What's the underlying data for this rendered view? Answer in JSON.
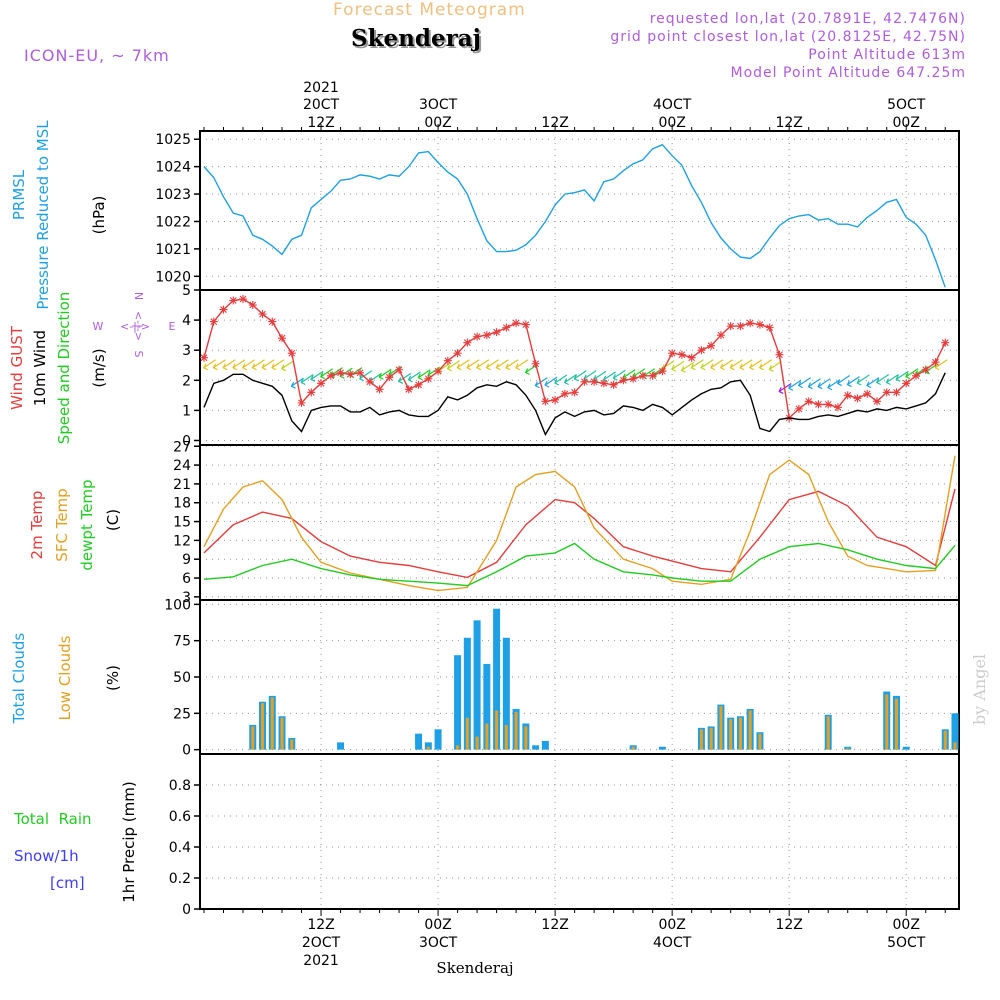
{
  "header": {
    "product": "Forecast Meteogram",
    "model": "ICON-EU, ~ 7km",
    "location": "Skenderaj",
    "requested": "requested lon,lat (20.7891E, 42.7476N)",
    "gridpoint": "grid point closest lon,lat (20.8125E, 42.75N)",
    "point_alt": "Point Altitude 613m",
    "model_alt": "Model Point Altitude 647.25m",
    "credit": "by Angel",
    "bottom_label": "Skenderaj"
  },
  "time_axis": {
    "top_year": "2021",
    "labels": [
      {
        "h": 12,
        "top": "20CT",
        "sub": "12Z"
      },
      {
        "h": 24,
        "top": "3OCT",
        "sub": "00Z"
      },
      {
        "h": 36,
        "top": "",
        "sub": "12Z"
      },
      {
        "h": 48,
        "top": "4OCT",
        "sub": "00Z"
      },
      {
        "h": 60,
        "top": "",
        "sub": "12Z"
      },
      {
        "h": 72,
        "top": "5OCT",
        "sub": "00Z"
      }
    ],
    "bottom_labels": [
      {
        "h": 12,
        "l1": "12Z",
        "l2": "2OCT",
        "l3": "2021"
      },
      {
        "h": 24,
        "l1": "00Z",
        "l2": "3OCT",
        "l3": ""
      },
      {
        "h": 36,
        "l1": "12Z",
        "l2": "",
        "l3": ""
      },
      {
        "h": 48,
        "l1": "00Z",
        "l2": "4OCT",
        "l3": ""
      },
      {
        "h": 60,
        "l1": "12Z",
        "l2": "",
        "l3": ""
      },
      {
        "h": 72,
        "l1": "00Z",
        "l2": "5OCT",
        "l3": ""
      }
    ]
  },
  "colors": {
    "pressure": "#1ea0e6",
    "gust": "#e63c3c",
    "wind": "#000000",
    "t2m": "#e63c3c",
    "sfc": "#e6a020",
    "dewpt": "#22cc22",
    "total_clouds": "#1ea0e6",
    "low_clouds": "#e6a020",
    "rain": "#22cc22",
    "snow": "#3c3cff",
    "header_purple": "#b05ce0",
    "header_orange": "#f0c080"
  },
  "chart_data": [
    {
      "type": "line",
      "panel": "pressure",
      "label_lines": [
        "PRMSL",
        "Pressure Reduced to MSL"
      ],
      "unit": "(hPa)",
      "ylim": [
        1019.5,
        1025.3
      ],
      "yticks": [
        1020,
        1021,
        1022,
        1023,
        1024,
        1025
      ],
      "series": [
        {
          "x": [
            0,
            1,
            2,
            3,
            4,
            5,
            6,
            7,
            8,
            9,
            10,
            11,
            12,
            13,
            14,
            15,
            16,
            17,
            18,
            19,
            20,
            21,
            22,
            23,
            24,
            25,
            26,
            27,
            28,
            29,
            30,
            31,
            32,
            33,
            34,
            35,
            36,
            37,
            38,
            39,
            40,
            41,
            42,
            43,
            44,
            45,
            46,
            47,
            48,
            49,
            50,
            51,
            52,
            53,
            54,
            55,
            56,
            57,
            58,
            59,
            60,
            61,
            62,
            63,
            64,
            65,
            66,
            67,
            68,
            69,
            70,
            71,
            72,
            73,
            74,
            75,
            76
          ],
          "y": [
            1024.0,
            1023.6,
            1022.9,
            1022.3,
            1022.2,
            1021.5,
            1021.35,
            1021.1,
            1020.8,
            1021.35,
            1021.5,
            1022.5,
            1022.8,
            1023.1,
            1023.5,
            1023.55,
            1023.7,
            1023.65,
            1023.55,
            1023.7,
            1023.65,
            1024.0,
            1024.5,
            1024.55,
            1024.15,
            1023.8,
            1023.55,
            1023.0,
            1022.1,
            1021.3,
            1020.9,
            1020.9,
            1020.95,
            1021.15,
            1021.5,
            1022.0,
            1022.6,
            1023.0,
            1023.05,
            1023.15,
            1022.75,
            1023.45,
            1023.55,
            1023.85,
            1024.1,
            1024.25,
            1024.65,
            1024.8,
            1024.4,
            1024.05,
            1023.3,
            1022.7,
            1021.95,
            1021.4,
            1021.0,
            1020.7,
            1020.65,
            1020.9,
            1021.4,
            1021.85,
            1022.1,
            1022.2,
            1022.25,
            1022.05,
            1022.1,
            1021.9,
            1021.9,
            1021.8,
            1022.15,
            1022.4,
            1022.7,
            1022.8,
            1022.15,
            1021.9,
            1021.5,
            1020.6,
            1019.6
          ]
        }
      ]
    },
    {
      "type": "line",
      "panel": "wind",
      "label_lines": [
        "Wind GUST",
        "10m Wind",
        "Speed and Direction"
      ],
      "unit": "(m/s)",
      "compass": {
        "n": "N",
        "s": "S",
        "w": "W",
        "e": "E"
      },
      "ylim": [
        -0.15,
        5
      ],
      "yticks": [
        0,
        1,
        2,
        3,
        4,
        5
      ],
      "series": [
        {
          "name": "Wind GUST",
          "x": [
            0,
            1,
            2,
            3,
            4,
            5,
            6,
            7,
            8,
            9,
            10,
            11,
            12,
            13,
            14,
            15,
            16,
            17,
            18,
            19,
            20,
            21,
            22,
            23,
            24,
            25,
            26,
            27,
            28,
            29,
            30,
            31,
            32,
            33,
            34,
            35,
            36,
            37,
            38,
            39,
            40,
            41,
            42,
            43,
            44,
            45,
            46,
            47,
            48,
            49,
            50,
            51,
            52,
            53,
            54,
            55,
            56,
            57,
            58,
            59,
            60,
            61,
            62,
            63,
            64,
            65,
            66,
            67,
            68,
            69,
            70,
            71,
            72,
            73,
            74,
            75,
            76
          ],
          "y": [
            2.75,
            3.95,
            4.35,
            4.65,
            4.7,
            4.5,
            4.2,
            3.95,
            3.4,
            2.9,
            1.25,
            1.6,
            1.9,
            2.15,
            2.25,
            2.2,
            2.25,
            1.95,
            1.7,
            2.1,
            2.35,
            1.7,
            1.85,
            2.05,
            2.3,
            2.65,
            2.9,
            3.25,
            3.45,
            3.5,
            3.6,
            3.75,
            3.9,
            3.85,
            2.55,
            1.3,
            1.35,
            1.55,
            1.6,
            1.95,
            1.95,
            1.9,
            1.85,
            2.0,
            2.05,
            2.15,
            2.15,
            2.3,
            2.9,
            2.85,
            2.75,
            3.0,
            3.15,
            3.5,
            3.8,
            3.8,
            3.9,
            3.85,
            3.75,
            2.85,
            0.75,
            1.05,
            1.3,
            1.2,
            1.2,
            1.1,
            1.5,
            1.4,
            1.55,
            1.3,
            1.6,
            1.6,
            1.9,
            2.15,
            2.35,
            2.6,
            3.25
          ]
        },
        {
          "name": "10m Wind",
          "x": [
            0,
            1,
            2,
            3,
            4,
            5,
            6,
            7,
            8,
            9,
            10,
            11,
            12,
            13,
            14,
            15,
            16,
            17,
            18,
            19,
            20,
            21,
            22,
            23,
            24,
            25,
            26,
            27,
            28,
            29,
            30,
            31,
            32,
            33,
            34,
            35,
            36,
            37,
            38,
            39,
            40,
            41,
            42,
            43,
            44,
            45,
            46,
            47,
            48,
            49,
            50,
            51,
            52,
            53,
            54,
            55,
            56,
            57,
            58,
            59,
            60,
            61,
            62,
            63,
            64,
            65,
            66,
            67,
            68,
            69,
            70,
            71,
            72,
            73,
            74,
            75,
            76
          ],
          "y": [
            1.1,
            1.9,
            2.0,
            2.2,
            2.2,
            2.0,
            1.9,
            1.8,
            1.5,
            0.65,
            0.3,
            1.0,
            1.1,
            1.15,
            1.15,
            0.95,
            0.95,
            1.1,
            0.85,
            0.95,
            1.0,
            0.85,
            0.8,
            0.8,
            1.0,
            1.45,
            1.35,
            1.5,
            1.75,
            1.85,
            1.8,
            1.95,
            1.85,
            1.5,
            1.0,
            0.2,
            0.75,
            0.95,
            0.8,
            0.95,
            1.0,
            0.85,
            0.9,
            1.15,
            1.1,
            1.0,
            1.2,
            1.1,
            0.85,
            1.1,
            1.35,
            1.55,
            1.7,
            1.75,
            1.95,
            2.0,
            1.5,
            0.4,
            0.3,
            0.7,
            0.75,
            0.7,
            0.7,
            0.8,
            0.85,
            0.8,
            0.9,
            1.0,
            0.95,
            1.05,
            1.0,
            1.1,
            1.05,
            1.15,
            1.25,
            1.55,
            2.25
          ]
        }
      ]
    },
    {
      "type": "line",
      "panel": "temperature",
      "label_lines": [
        "2m Temp",
        "SFC Temp",
        "dewpt Temp"
      ],
      "unit": "(C)",
      "ylim": [
        2.5,
        27.2
      ],
      "yticks": [
        3,
        6,
        9,
        12,
        15,
        18,
        21,
        24,
        27
      ],
      "series": [
        {
          "name": "2m Temp",
          "x": [
            0,
            3,
            6,
            9,
            12,
            15,
            18,
            21,
            24,
            27,
            30,
            33,
            36,
            38,
            40,
            43,
            46,
            48,
            51,
            54,
            57,
            60,
            63,
            66,
            69,
            72,
            75,
            77
          ],
          "y": [
            10,
            14.5,
            16.5,
            15.5,
            11.8,
            9.5,
            8.5,
            8.0,
            7.0,
            6.1,
            8.5,
            14.5,
            18.5,
            18.0,
            15.5,
            11.0,
            9.5,
            8.7,
            7.5,
            7.0,
            12.5,
            18.5,
            19.8,
            17.5,
            12.5,
            11.0,
            8.0,
            20.2
          ]
        },
        {
          "name": "SFC Temp",
          "x": [
            0,
            2,
            4,
            6,
            8,
            10,
            12,
            15,
            18,
            21,
            24,
            27,
            30,
            32,
            34,
            36,
            38,
            40,
            43,
            46,
            48,
            51,
            54,
            56,
            58,
            60,
            62,
            64,
            66,
            68,
            70,
            72,
            75,
            77
          ],
          "y": [
            11,
            17,
            20.5,
            21.5,
            18.5,
            12.5,
            8.5,
            6.8,
            5.8,
            4.8,
            4.0,
            4.5,
            12.0,
            20.5,
            22.5,
            23.0,
            20.5,
            14.0,
            9.0,
            7.5,
            5.5,
            5.0,
            5.8,
            13.5,
            22.5,
            24.8,
            22.5,
            15.0,
            9.5,
            8.0,
            7.5,
            7.0,
            7.2,
            25.5
          ]
        },
        {
          "name": "dewpt Temp",
          "x": [
            0,
            3,
            6,
            9,
            12,
            15,
            18,
            21,
            24,
            27,
            30,
            33,
            36,
            38,
            40,
            43,
            46,
            48,
            51,
            54,
            57,
            60,
            63,
            66,
            69,
            72,
            75,
            77
          ],
          "y": [
            5.8,
            6.2,
            8.0,
            9.0,
            7.5,
            6.5,
            5.8,
            5.5,
            5.2,
            4.8,
            7.0,
            9.5,
            10.0,
            11.5,
            9.0,
            7.0,
            6.5,
            6.0,
            5.5,
            5.5,
            9.0,
            11.0,
            11.5,
            10.5,
            9.0,
            8.0,
            7.5,
            11.2
          ]
        }
      ]
    },
    {
      "type": "bar",
      "panel": "clouds",
      "label_lines": [
        "Total Clouds",
        "Low Clouds"
      ],
      "unit": "(%)",
      "ylim": [
        -3,
        103
      ],
      "yticks": [
        0,
        25,
        50,
        75,
        100
      ],
      "series": [
        {
          "name": "Total Clouds",
          "x": [
            5,
            6,
            7,
            8,
            9,
            14,
            22,
            23,
            24,
            26,
            27,
            28,
            29,
            30,
            31,
            32,
            33,
            34,
            35,
            44,
            47,
            51,
            52,
            53,
            54,
            55,
            56,
            57,
            64,
            66,
            70,
            71,
            72,
            76,
            77
          ],
          "values": [
            17,
            33,
            37,
            23,
            8,
            5,
            11,
            5,
            14,
            65,
            77,
            89,
            59,
            97,
            77,
            28,
            18,
            3,
            6,
            3,
            2,
            15,
            16,
            31,
            22,
            23,
            28,
            12,
            24,
            2,
            40,
            37,
            2,
            14,
            25
          ]
        },
        {
          "name": "Low Clouds",
          "x": [
            5,
            6,
            7,
            8,
            9,
            23,
            26,
            27,
            28,
            29,
            30,
            31,
            32,
            33,
            44,
            51,
            52,
            53,
            54,
            55,
            56,
            57,
            64,
            66,
            70,
            71,
            76,
            77
          ],
          "values": [
            16,
            32,
            36,
            22,
            7,
            2,
            3,
            22,
            9,
            18,
            27,
            17,
            26,
            16,
            2,
            14,
            15,
            30,
            21,
            22,
            27,
            11,
            23,
            1,
            38,
            35,
            13,
            5
          ]
        }
      ]
    },
    {
      "type": "line",
      "panel": "precip",
      "label_lines": [
        "1hr Precip (mm)"
      ],
      "legend": {
        "rain": "Total  Rain",
        "snow": "Snow/1h",
        "snow_unit": "[cm]"
      },
      "ylim": [
        0,
        1.0
      ],
      "yticks": [
        "0",
        "0.2",
        "0.4",
        "0.6",
        "0.8"
      ],
      "series": []
    }
  ]
}
